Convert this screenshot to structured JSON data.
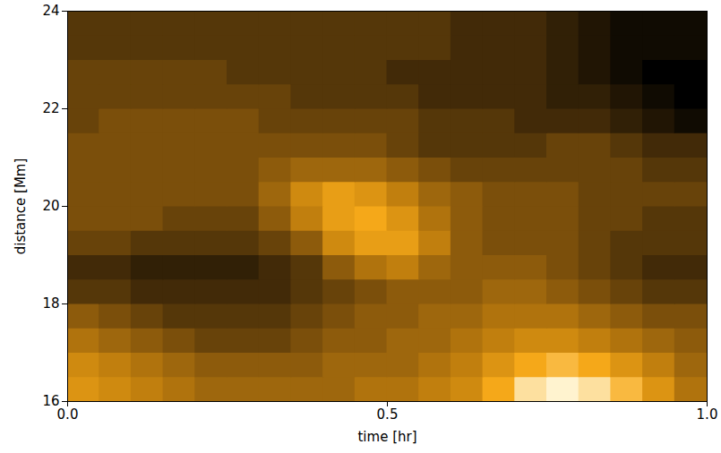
{
  "chart_data": {
    "type": "heatmap",
    "xlabel": "time [hr]",
    "ylabel": "distance [Mm]",
    "xlim": [
      0,
      1
    ],
    "ylim": [
      16,
      24
    ],
    "xticks": [
      {
        "value": 0,
        "label": "0.0"
      },
      {
        "value": 0.5,
        "label": "0.5"
      },
      {
        "value": 1,
        "label": "1.0"
      }
    ],
    "yticks": [
      16,
      18,
      20,
      22,
      24
    ],
    "x_edges": [
      0,
      0.05,
      0.1,
      0.15,
      0.2,
      0.25,
      0.3,
      0.35,
      0.4,
      0.45,
      0.5,
      0.55,
      0.6,
      0.65,
      0.7,
      0.75,
      0.8,
      0.85,
      0.9,
      0.95,
      1
    ],
    "y_edges": [
      16,
      16.5,
      17,
      17.5,
      18,
      18.5,
      19,
      19.5,
      20,
      20.5,
      21,
      21.5,
      22,
      22.5,
      23,
      23.5,
      24
    ],
    "values": [
      [
        7,
        6.5,
        6,
        5.5,
        5,
        5,
        5,
        5,
        5,
        5.5,
        5.5,
        6,
        6.5,
        8,
        9.5,
        10,
        9.5,
        8.5,
        7,
        5.5
      ],
      [
        6.5,
        6,
        5.5,
        5,
        4.5,
        4.5,
        4.5,
        4.5,
        5,
        5,
        5,
        5.5,
        6,
        7,
        8,
        8.5,
        8,
        7,
        6,
        5
      ],
      [
        5.5,
        5,
        4.5,
        4,
        3.5,
        3.5,
        3.5,
        4,
        4.5,
        4.5,
        5,
        5,
        5.5,
        6,
        6.5,
        6.5,
        6,
        5.5,
        5,
        4.5
      ],
      [
        4.5,
        4,
        3.5,
        3,
        3,
        3,
        3,
        3.5,
        4,
        4.5,
        4.5,
        5,
        5,
        5.5,
        5.5,
        5.5,
        5,
        4.5,
        4,
        4
      ],
      [
        3,
        3,
        2.5,
        2.5,
        2.5,
        2.5,
        2.5,
        3,
        3.5,
        4,
        4.5,
        4.5,
        4.5,
        5,
        5,
        4.5,
        4,
        3.5,
        3,
        3
      ],
      [
        2.5,
        2.5,
        2,
        2,
        2,
        2,
        2.5,
        3,
        4.5,
        5.5,
        6,
        5,
        4.5,
        4.5,
        4.5,
        4,
        3.5,
        3,
        2.5,
        2.5
      ],
      [
        3.5,
        3.5,
        3,
        3,
        3,
        3,
        3.5,
        4.5,
        6.5,
        7.5,
        7.5,
        6,
        4.5,
        4,
        4,
        4,
        3.5,
        3,
        3,
        3
      ],
      [
        4,
        4,
        4,
        3.5,
        3.5,
        3.5,
        4.5,
        6,
        7.5,
        8,
        7,
        5.5,
        4.5,
        4,
        4,
        4,
        3.5,
        3.5,
        3,
        3
      ],
      [
        4,
        4,
        4,
        4,
        4,
        4,
        5,
        6.5,
        7.5,
        7,
        6,
        5,
        4.5,
        4,
        4,
        4,
        3.5,
        3.5,
        3.5,
        3.5
      ],
      [
        4,
        4,
        4,
        4,
        4,
        4,
        4.5,
        5,
        5,
        5,
        4.5,
        4,
        3.5,
        3.5,
        3.5,
        3.5,
        3.5,
        3.5,
        3,
        3
      ],
      [
        4,
        4,
        4,
        4,
        4,
        4,
        4,
        4,
        4,
        4,
        3.5,
        3,
        3,
        3,
        3,
        3.5,
        3.5,
        3,
        2.5,
        2.5
      ],
      [
        3.5,
        4,
        4,
        4,
        4,
        4,
        3.5,
        3.5,
        3.5,
        3.5,
        3.5,
        3,
        3,
        3,
        2.5,
        2.5,
        2.5,
        2,
        1.5,
        1
      ],
      [
        3.5,
        3.5,
        3.5,
        3.5,
        3.5,
        3.5,
        3.5,
        3,
        3,
        3,
        3,
        2.5,
        2.5,
        2.5,
        2.5,
        2,
        2,
        1.5,
        1,
        0.5
      ],
      [
        3.5,
        3.5,
        3.5,
        3.5,
        3.5,
        3,
        3,
        3,
        3,
        3,
        2.5,
        2.5,
        2.5,
        2.5,
        2.5,
        2,
        1.5,
        1,
        0.5,
        0.5
      ],
      [
        3,
        3,
        3,
        3,
        3,
        3,
        3,
        3,
        3,
        3,
        3,
        3,
        2.5,
        2.5,
        2.5,
        2,
        1.5,
        1,
        1,
        1
      ],
      [
        3,
        3,
        3,
        3,
        3,
        3,
        3,
        3,
        3,
        3,
        3,
        3,
        2.5,
        2.5,
        2.5,
        2,
        1.5,
        1,
        1,
        1
      ]
    ]
  }
}
